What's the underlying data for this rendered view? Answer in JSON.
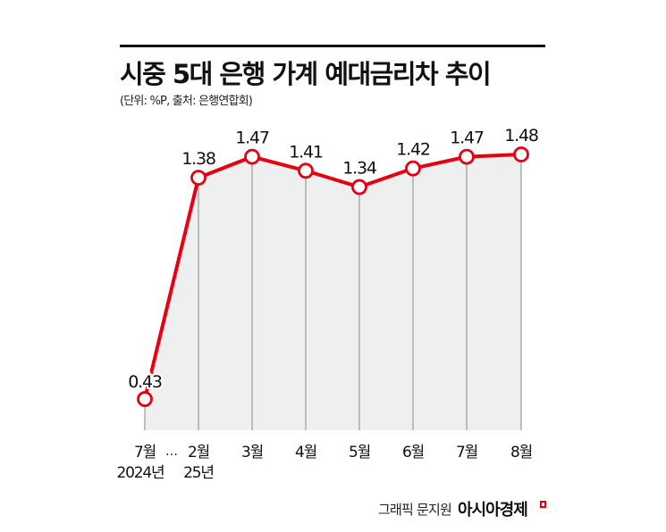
{
  "header": {
    "title": "시중 5대 은행 가계 예대금리차 추이",
    "subtitle": "(단위: %P, 출처: 은행연합회)"
  },
  "footer": {
    "credit": "그래픽 문지원",
    "brand": "아시아경제"
  },
  "colors": {
    "line": "#e60012",
    "fill": "#eef0ef",
    "grid": "#999999",
    "text": "#111111"
  },
  "chart_data": {
    "type": "line",
    "title": "시중 5대 은행 가계 예대금리차 추이",
    "subtitle": "(단위: %P, 출처: 은행연합회)",
    "xlabel": "",
    "ylabel": "%P",
    "categories": [
      "2024년 7월",
      "2025년 2월",
      "3월",
      "4월",
      "5월",
      "6월",
      "7월",
      "8월"
    ],
    "x_labels": [
      {
        "line1": "7월",
        "line2": "2024년"
      },
      {
        "line1": "2월",
        "line2": "25년"
      },
      {
        "line1": "3월",
        "line2": ""
      },
      {
        "line1": "4월",
        "line2": ""
      },
      {
        "line1": "5월",
        "line2": ""
      },
      {
        "line1": "6월",
        "line2": ""
      },
      {
        "line1": "7월",
        "line2": ""
      },
      {
        "line1": "8월",
        "line2": ""
      }
    ],
    "axis_break": "…",
    "series": [
      {
        "name": "예대금리차",
        "values": [
          0.43,
          1.38,
          1.47,
          1.41,
          1.34,
          1.42,
          1.47,
          1.48
        ]
      }
    ],
    "value_labels": [
      "0.43",
      "1.38",
      "1.47",
      "1.41",
      "1.34",
      "1.42",
      "1.47",
      "1.48"
    ],
    "grid": "vertical",
    "legend": "none"
  }
}
